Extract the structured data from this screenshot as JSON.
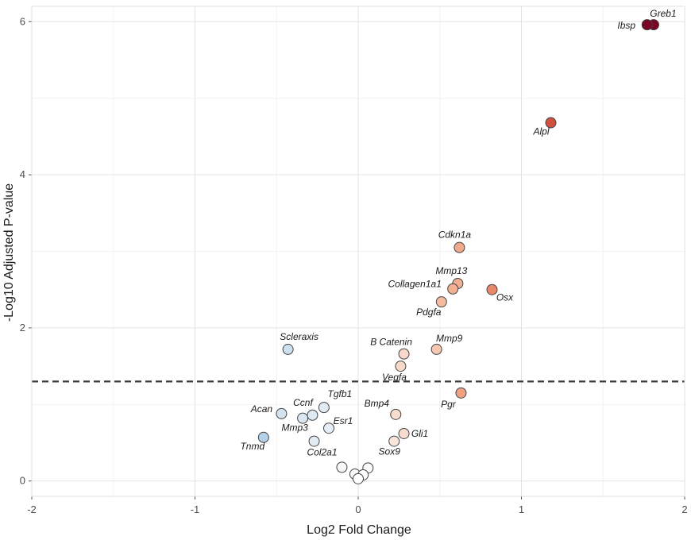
{
  "chart_data": {
    "type": "scatter",
    "title": "",
    "xlabel": "Log2 Fold Change",
    "ylabel": "-Log10 Adjusted P-value",
    "xlim": [
      -2,
      2
    ],
    "ylim": [
      -0.2,
      6.2
    ],
    "x_ticks": [
      -2,
      -1,
      0,
      1,
      2
    ],
    "y_ticks": [
      0,
      2,
      4,
      6
    ],
    "grid": true,
    "legend": "none",
    "threshold": {
      "y": 1.3,
      "style": "dashed"
    },
    "color_scale": {
      "negative": "#c2d8ec",
      "neutral": "#ffffff",
      "positive": "#f4a582",
      "strong": "#d6604d",
      "max": "#7f0020"
    },
    "points": [
      {
        "label": "Greb1",
        "x": 1.81,
        "y": 5.96,
        "color": "#7a0524"
      },
      {
        "label": "Ibsp",
        "x": 1.77,
        "y": 5.96,
        "color": "#7a0524"
      },
      {
        "label": "Alpl",
        "x": 1.18,
        "y": 4.68,
        "color": "#d0503f"
      },
      {
        "label": "Cdkn1a",
        "x": 0.62,
        "y": 3.05,
        "color": "#f0a98b"
      },
      {
        "label": "Mmp13",
        "x": 0.61,
        "y": 2.58,
        "color": "#f2b093"
      },
      {
        "label": "Collagen1a1",
        "x": 0.58,
        "y": 2.51,
        "color": "#f2b093"
      },
      {
        "label": "Osx",
        "x": 0.82,
        "y": 2.5,
        "color": "#e8886a"
      },
      {
        "label": "Pdgfa",
        "x": 0.51,
        "y": 2.34,
        "color": "#f4bba1"
      },
      {
        "label": "Mmp9",
        "x": 0.48,
        "y": 1.72,
        "color": "#f6c8b2"
      },
      {
        "label": "B Catenin",
        "x": 0.28,
        "y": 1.66,
        "color": "#f8d8c8"
      },
      {
        "label": "Vegfa",
        "x": 0.26,
        "y": 1.5,
        "color": "#f8d8c8"
      },
      {
        "label": "Scleraxis",
        "x": -0.43,
        "y": 1.72,
        "color": "#cde0ef"
      },
      {
        "label": "Pgr",
        "x": 0.63,
        "y": 1.15,
        "color": "#efa07e"
      },
      {
        "label": "Bmp4",
        "x": 0.23,
        "y": 0.87,
        "color": "#f8dccd"
      },
      {
        "label": "Tgfb1",
        "x": -0.21,
        "y": 0.96,
        "color": "#e2ecf5"
      },
      {
        "label": "Acan",
        "x": -0.47,
        "y": 0.88,
        "color": "#d4e3f0"
      },
      {
        "label": "Ccnf",
        "x": -0.28,
        "y": 0.86,
        "color": "#dde9f3"
      },
      {
        "label": "Mmp3",
        "x": -0.34,
        "y": 0.82,
        "color": "#dae7f2"
      },
      {
        "label": "Esr1",
        "x": -0.18,
        "y": 0.69,
        "color": "#e5eef6"
      },
      {
        "label": "Gli1",
        "x": 0.28,
        "y": 0.62,
        "color": "#f8dccd"
      },
      {
        "label": "Sox9",
        "x": 0.22,
        "y": 0.52,
        "color": "#fae5da"
      },
      {
        "label": "Col2a1",
        "x": -0.27,
        "y": 0.52,
        "color": "#e0ebf4"
      },
      {
        "label": "Tnmd",
        "x": -0.58,
        "y": 0.57,
        "color": "#b5d0e7"
      },
      {
        "label": "",
        "x": -0.1,
        "y": 0.18,
        "color": "#f7f7f7"
      },
      {
        "label": "",
        "x": 0.06,
        "y": 0.17,
        "color": "#fbfbfb"
      },
      {
        "label": "",
        "x": -0.02,
        "y": 0.09,
        "color": "#fbfbfb"
      },
      {
        "label": "",
        "x": 0.03,
        "y": 0.08,
        "color": "#ffffff"
      },
      {
        "label": "",
        "x": 0.0,
        "y": 0.03,
        "color": "#ffffff"
      }
    ]
  }
}
